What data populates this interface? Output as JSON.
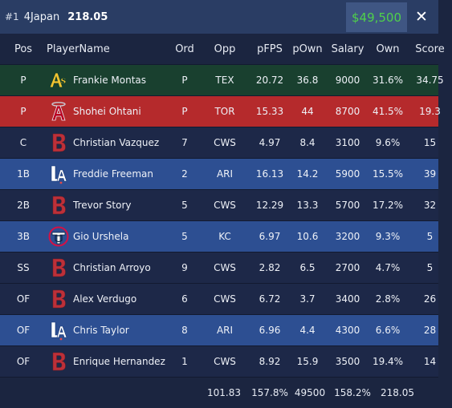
{
  "header": {
    "rank": "#1",
    "team": "4Japan",
    "total": "218.05",
    "salary": "$49,500",
    "close_icon": "close-icon"
  },
  "columns": [
    "Pos",
    "PlayerName",
    "Ord",
    "Opp",
    "pFPS",
    "pOwn",
    "Salary",
    "Own",
    "Score"
  ],
  "players": [
    {
      "pos": "P",
      "logo": "athletics-logo",
      "name": "Frankie Montas",
      "ord": "P",
      "opp": "TEX",
      "pfps": "20.72",
      "pown": "36.8",
      "salary": "9000",
      "own": "31.6%",
      "score": "34.75",
      "row_style": "green"
    },
    {
      "pos": "P",
      "logo": "angels-logo",
      "name": "Shohei Ohtani",
      "ord": "P",
      "opp": "TOR",
      "pfps": "15.33",
      "pown": "44",
      "salary": "8700",
      "own": "41.5%",
      "score": "19.3",
      "row_style": "red"
    },
    {
      "pos": "C",
      "logo": "red-sox-logo",
      "name": "Christian Vazquez",
      "ord": "7",
      "opp": "CWS",
      "pfps": "4.97",
      "pown": "8.4",
      "salary": "3100",
      "own": "9.6%",
      "score": "15",
      "row_style": "dark"
    },
    {
      "pos": "1B",
      "logo": "dodgers-logo",
      "name": "Freddie Freeman",
      "ord": "2",
      "opp": "ARI",
      "pfps": "16.13",
      "pown": "14.2",
      "salary": "5900",
      "own": "15.5%",
      "score": "39",
      "row_style": "blue"
    },
    {
      "pos": "2B",
      "logo": "red-sox-logo",
      "name": "Trevor Story",
      "ord": "5",
      "opp": "CWS",
      "pfps": "12.29",
      "pown": "13.3",
      "salary": "5700",
      "own": "17.2%",
      "score": "32",
      "row_style": "dark"
    },
    {
      "pos": "3B",
      "logo": "twins-logo",
      "name": "Gio Urshela",
      "ord": "5",
      "opp": "KC",
      "pfps": "6.97",
      "pown": "10.6",
      "salary": "3200",
      "own": "9.3%",
      "score": "5",
      "row_style": "blue"
    },
    {
      "pos": "SS",
      "logo": "red-sox-logo",
      "name": "Christian Arroyo",
      "ord": "9",
      "opp": "CWS",
      "pfps": "2.82",
      "pown": "6.5",
      "salary": "2700",
      "own": "4.7%",
      "score": "5",
      "row_style": "dark"
    },
    {
      "pos": "OF",
      "logo": "red-sox-logo",
      "name": "Alex Verdugo",
      "ord": "6",
      "opp": "CWS",
      "pfps": "6.72",
      "pown": "3.7",
      "salary": "3400",
      "own": "2.8%",
      "score": "26",
      "row_style": "dark"
    },
    {
      "pos": "OF",
      "logo": "dodgers-logo",
      "name": "Chris Taylor",
      "ord": "8",
      "opp": "ARI",
      "pfps": "6.96",
      "pown": "4.4",
      "salary": "4300",
      "own": "6.6%",
      "score": "28",
      "row_style": "blue"
    },
    {
      "pos": "OF",
      "logo": "red-sox-logo",
      "name": "Enrique Hernandez",
      "ord": "1",
      "opp": "CWS",
      "pfps": "8.92",
      "pown": "15.9",
      "salary": "3500",
      "own": "19.4%",
      "score": "14",
      "row_style": "dark"
    }
  ],
  "totals": {
    "pfps": "101.83",
    "pown": "157.8%",
    "salary": "49500",
    "own": "158.2%",
    "score": "218.05"
  },
  "colors": {
    "header_bg": "#2a3d64",
    "salary_green": "#4fd14a",
    "row_green": "#19402f",
    "row_red": "#b52a2c",
    "row_dark": "#1d2848",
    "row_blue": "#2d4f92"
  }
}
